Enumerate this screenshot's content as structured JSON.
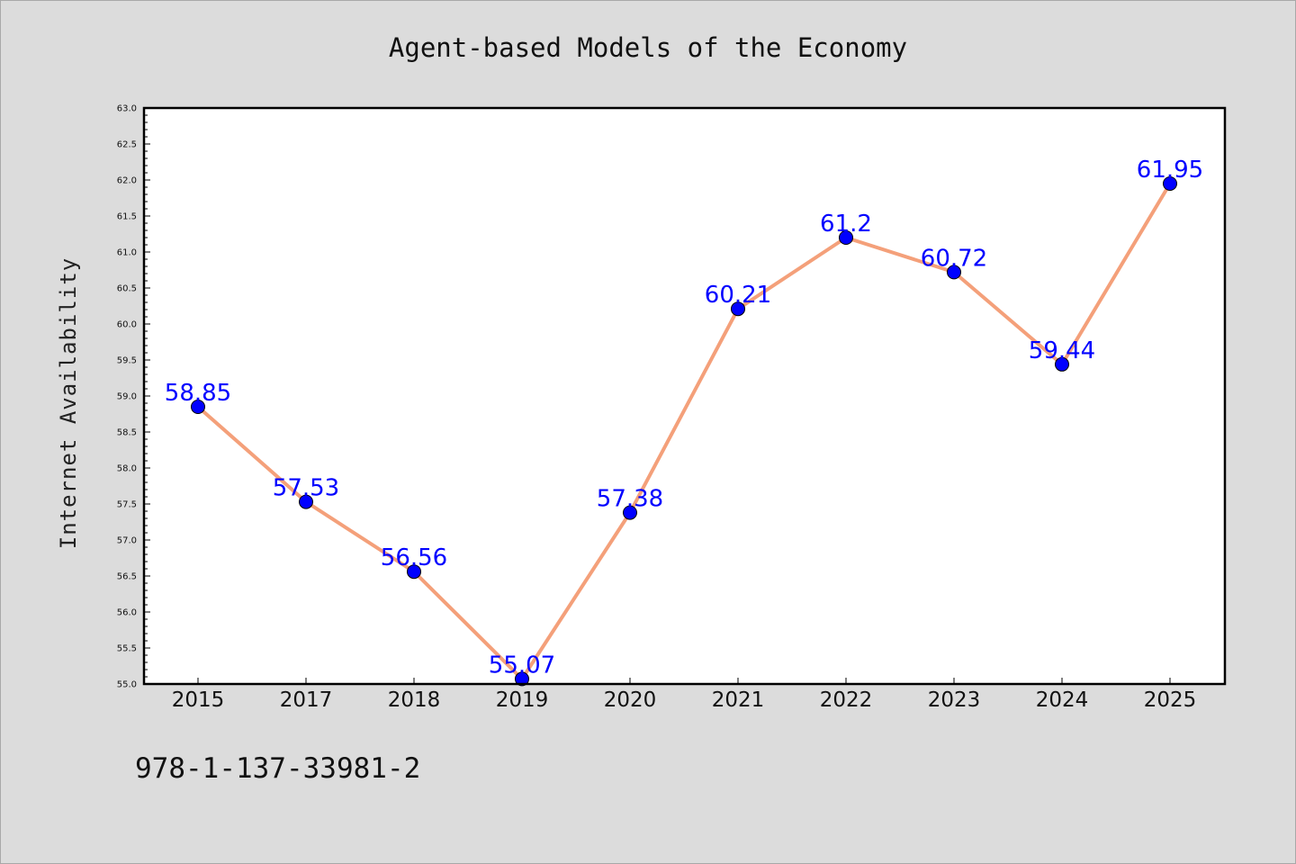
{
  "chart_data": {
    "type": "line",
    "title": "Agent-based Models of the Economy",
    "xlabel": "",
    "ylabel": "Internet Availability",
    "categories": [
      "2015",
      "2017",
      "2018",
      "2019",
      "2020",
      "2021",
      "2022",
      "2023",
      "2024",
      "2025"
    ],
    "series": [
      {
        "values": [
          58.85,
          57.53,
          56.56,
          55.07,
          57.38,
          60.21,
          61.2,
          60.72,
          59.44,
          61.95
        ],
        "data_labels": [
          "58.85",
          "57.53",
          "56.56",
          "55.07",
          "57.38",
          "60.21",
          "61.2",
          "60.72",
          "59.44",
          "61.95"
        ],
        "line_color": "#f4a07a",
        "marker_color": "#0000ff"
      }
    ],
    "ylim": [
      55.0,
      63.0
    ],
    "yticks": [
      "55.0",
      "55.5",
      "56.0",
      "56.5",
      "57.0",
      "57.5",
      "58.0",
      "58.5",
      "59.0",
      "59.5",
      "60.0",
      "60.5",
      "61.0",
      "61.5",
      "62.0",
      "62.5",
      "63.0"
    ],
    "grid": false,
    "legend": "none"
  },
  "footer": {
    "isbn": "978-1-137-33981-2"
  },
  "colors": {
    "background": "#dcdcdc",
    "plot_background": "#ffffff",
    "line": "#f4a07a",
    "marker": "#0000ff",
    "data_label": "#0000ff"
  }
}
